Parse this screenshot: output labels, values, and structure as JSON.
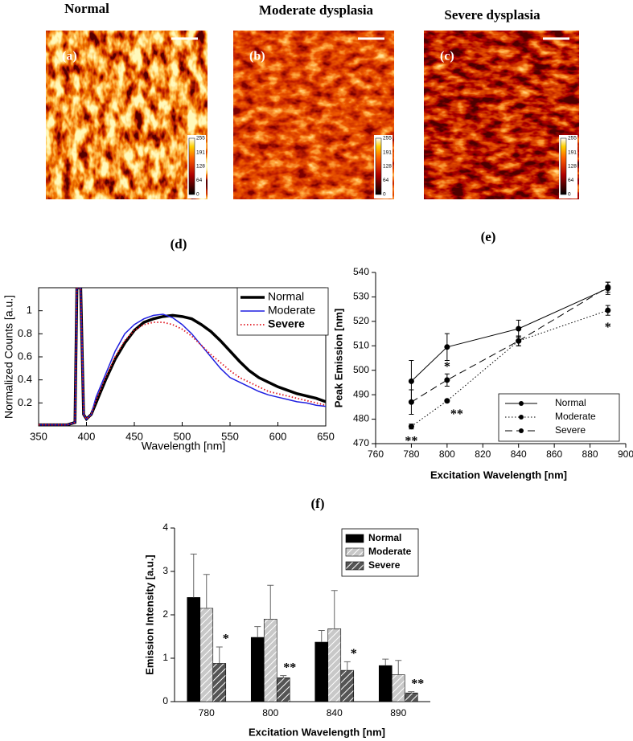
{
  "images": [
    {
      "title": "Normal",
      "label": "(a)"
    },
    {
      "title": "Moderate dysplasia",
      "label": "(b)"
    },
    {
      "title": "Severe dysplasia",
      "label": "(c)"
    }
  ],
  "colorbar_ticks": [
    0,
    64,
    128,
    191,
    255
  ],
  "chart_data": [
    {
      "type": "line",
      "title": "(d)",
      "xlabel": "Wavelength [nm]",
      "ylabel": "Normalized Counts [a.u.]",
      "x": [
        350,
        380,
        388,
        390,
        394,
        397,
        400,
        405,
        410,
        420,
        430,
        440,
        450,
        460,
        470,
        480,
        490,
        500,
        510,
        520,
        530,
        540,
        550,
        560,
        570,
        580,
        590,
        600,
        610,
        620,
        630,
        640,
        650
      ],
      "xlim": [
        350,
        650
      ],
      "ylim": [
        0,
        1.2
      ],
      "xticks": [
        350,
        400,
        450,
        500,
        550,
        600,
        650
      ],
      "yticks": [
        0.2,
        0.4,
        0.6,
        0.8,
        1
      ],
      "legend": "upper right",
      "series": [
        {
          "name": "Normal",
          "color": "#000000",
          "style": "solid",
          "linewidth": 3.5,
          "values": [
            0.01,
            0.01,
            0.03,
            1.2,
            1.2,
            0.1,
            0.06,
            0.1,
            0.2,
            0.4,
            0.58,
            0.72,
            0.83,
            0.9,
            0.93,
            0.95,
            0.96,
            0.95,
            0.93,
            0.88,
            0.82,
            0.74,
            0.65,
            0.56,
            0.48,
            0.42,
            0.38,
            0.34,
            0.31,
            0.28,
            0.26,
            0.24,
            0.21
          ]
        },
        {
          "name": "Moderate",
          "color": "#1f1fe0",
          "style": "solid",
          "linewidth": 1.5,
          "values": [
            0.01,
            0.01,
            0.03,
            1.2,
            1.2,
            0.1,
            0.06,
            0.1,
            0.25,
            0.45,
            0.65,
            0.8,
            0.88,
            0.93,
            0.96,
            0.97,
            0.94,
            0.88,
            0.8,
            0.7,
            0.6,
            0.5,
            0.42,
            0.38,
            0.34,
            0.3,
            0.27,
            0.25,
            0.23,
            0.21,
            0.2,
            0.18,
            0.17
          ]
        },
        {
          "name": "Severe",
          "color": "#e0141e",
          "style": "dotted",
          "linewidth": 1.8,
          "values": [
            0.01,
            0.01,
            0.03,
            1.2,
            1.2,
            0.1,
            0.06,
            0.1,
            0.22,
            0.42,
            0.6,
            0.74,
            0.83,
            0.88,
            0.9,
            0.9,
            0.88,
            0.84,
            0.78,
            0.7,
            0.62,
            0.55,
            0.48,
            0.42,
            0.38,
            0.34,
            0.3,
            0.28,
            0.26,
            0.24,
            0.22,
            0.2,
            0.18
          ]
        }
      ]
    },
    {
      "type": "errorline",
      "title": "(e)",
      "xlabel": "Excitation Wavelength [nm]",
      "ylabel": "Peak Emission [nm]",
      "x": [
        780,
        800,
        840,
        890
      ],
      "xlim": [
        760,
        900
      ],
      "ylim": [
        470,
        540
      ],
      "xticks": [
        760,
        780,
        800,
        820,
        840,
        860,
        880,
        900
      ],
      "yticks": [
        470,
        480,
        490,
        500,
        510,
        520,
        530,
        540
      ],
      "legend": "lower right",
      "series": [
        {
          "name": "Normal",
          "color": "#000000",
          "style": "solid",
          "values": [
            495.5,
            509.5,
            517,
            533.5
          ],
          "errors": [
            8.5,
            5.5,
            3.5,
            2.5
          ],
          "significance": [
            null,
            null,
            null,
            null
          ]
        },
        {
          "name": "Moderate",
          "color": "#000000",
          "style": "dotted",
          "values": [
            477,
            487.5,
            512,
            524.5
          ],
          "errors": [
            1,
            0.5,
            2,
            2
          ],
          "significance": [
            "**",
            "**",
            null,
            "*"
          ]
        },
        {
          "name": "Severe",
          "color": "#000000",
          "style": "dashed",
          "values": [
            487,
            496,
            512,
            534
          ],
          "errors": [
            5,
            2.5,
            2,
            2
          ],
          "significance": [
            null,
            "*",
            null,
            null
          ]
        }
      ]
    },
    {
      "type": "bar",
      "title": "(f)",
      "xlabel": "Excitation Wavelength [nm]",
      "ylabel": "Emission Intensity [a.u.]",
      "categories": [
        "780",
        "800",
        "840",
        "890"
      ],
      "ylim": [
        0,
        4
      ],
      "yticks": [
        0,
        1,
        2,
        3,
        4
      ],
      "legend": "upper right",
      "series": [
        {
          "name": "Normal",
          "color": "#000000",
          "hatch": false,
          "values": [
            2.4,
            1.48,
            1.37,
            0.83
          ],
          "errors": [
            1.0,
            0.25,
            0.27,
            0.15
          ],
          "significance": [
            null,
            null,
            null,
            null
          ]
        },
        {
          "name": "Moderate",
          "color": "#c8c8c8",
          "hatch": true,
          "values": [
            2.15,
            1.9,
            1.68,
            0.62
          ],
          "errors": [
            0.78,
            0.78,
            0.88,
            0.33
          ],
          "significance": [
            null,
            null,
            null,
            null
          ]
        },
        {
          "name": "Severe",
          "color": "#555555",
          "hatch": true,
          "values": [
            0.88,
            0.55,
            0.72,
            0.2
          ],
          "errors": [
            0.38,
            0.05,
            0.2,
            0.03
          ],
          "significance": [
            "*",
            "**",
            "*",
            "**"
          ]
        }
      ]
    }
  ]
}
